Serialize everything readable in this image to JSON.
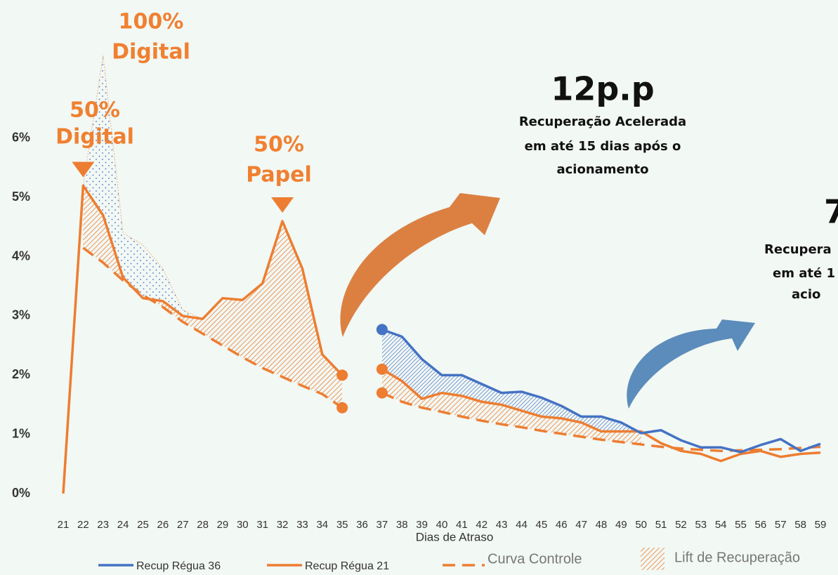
{
  "chart_data": {
    "type": "line",
    "x_label": "Dias de Atraso",
    "categories": [
      "21",
      "22",
      "23",
      "24",
      "25",
      "26",
      "27",
      "28",
      "29",
      "30",
      "31",
      "32",
      "33",
      "34",
      "35",
      "36",
      "37",
      "38",
      "39",
      "40",
      "41",
      "42",
      "43",
      "44",
      "45",
      "46",
      "47",
      "48",
      "49",
      "50",
      "51",
      "52",
      "53",
      "54",
      "55",
      "56",
      "57",
      "58",
      "59"
    ],
    "ylim": [
      0,
      8.3
    ],
    "yticks": [
      {
        "value": 0,
        "label": "0%"
      },
      {
        "value": 1,
        "label": "1%"
      },
      {
        "value": 2,
        "label": "2%"
      },
      {
        "value": 3,
        "label": "3%"
      },
      {
        "value": 4,
        "label": "4%"
      },
      {
        "value": 5,
        "label": "5%"
      },
      {
        "value": 6,
        "label": "6%"
      }
    ],
    "series": [
      {
        "name": "Recup Régua 36",
        "color": "#4472c4",
        "style": "solid",
        "values": [
          null,
          null,
          null,
          null,
          null,
          null,
          null,
          null,
          null,
          null,
          null,
          null,
          null,
          null,
          null,
          null,
          2.77,
          2.65,
          2.27,
          2.0,
          2.0,
          1.85,
          1.7,
          1.72,
          1.62,
          1.48,
          1.3,
          1.3,
          1.2,
          1.02,
          1.07,
          0.9,
          0.78,
          0.78,
          0.7,
          0.82,
          0.92,
          0.72,
          0.84
        ]
      },
      {
        "name": "Recup Régua 21",
        "color": "#ed7d31",
        "style": "solid",
        "values": [
          0,
          5.2,
          4.7,
          3.65,
          3.3,
          3.25,
          3.0,
          2.95,
          3.3,
          3.27,
          3.55,
          4.6,
          3.8,
          2.35,
          2.0,
          null,
          2.1,
          1.9,
          1.6,
          1.7,
          1.65,
          1.55,
          1.5,
          1.4,
          1.3,
          1.27,
          1.2,
          1.05,
          1.05,
          1.05,
          0.85,
          0.72,
          0.67,
          0.55,
          0.67,
          0.72,
          0.62,
          0.67,
          0.69
        ]
      },
      {
        "name": "Curva Controle",
        "color": "#ed7d31",
        "style": "dashed",
        "values": [
          null,
          4.15,
          3.9,
          3.6,
          3.35,
          3.15,
          2.9,
          2.7,
          2.5,
          2.3,
          2.12,
          1.97,
          1.82,
          1.68,
          1.45,
          null,
          1.7,
          1.55,
          1.45,
          1.38,
          1.3,
          1.23,
          1.17,
          1.12,
          1.06,
          1.01,
          0.96,
          0.91,
          0.87,
          0.83,
          0.79,
          0.76,
          0.74,
          0.72,
          0.73,
          0.74,
          0.75,
          0.77,
          0.79
        ]
      },
      {
        "color": "#ed7d31",
        "style": "hidden",
        "values": [
          null,
          5.2,
          7.4,
          4.4,
          4.2,
          3.8,
          3.1,
          2.95,
          null,
          null,
          null,
          null,
          null,
          null,
          null,
          null,
          null,
          null,
          null,
          null,
          null,
          null,
          null,
          null,
          null,
          null,
          null,
          null,
          null,
          null,
          null,
          null,
          null,
          null,
          null,
          null,
          null,
          null,
          null
        ]
      }
    ],
    "area_legend": "Lift de Recuperação",
    "annotations": [
      {
        "lines": [
          "100%",
          "Digital"
        ]
      },
      {
        "lines": [
          "50%",
          "Digital"
        ]
      },
      {
        "lines": [
          "50%",
          "Papel"
        ]
      },
      {
        "lines": [
          "12p.p",
          "Recuperação Acelerada",
          "em até 15 dias após o",
          "acionamento"
        ]
      },
      {
        "lines": [
          "7",
          "Recupera",
          "em até 1",
          "acio"
        ]
      }
    ]
  }
}
